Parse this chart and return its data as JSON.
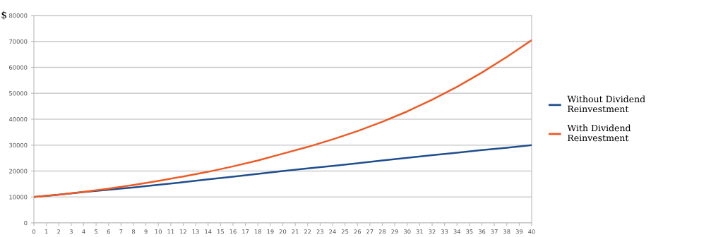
{
  "chart_data": {
    "type": "line",
    "ylabel": "$",
    "x": [
      0,
      2,
      4,
      6,
      8,
      10,
      12,
      14,
      16,
      18,
      20,
      22,
      24,
      26,
      28,
      30,
      32,
      34,
      36,
      38,
      40
    ],
    "series": [
      {
        "name": "Without Dividend\nReinvestment",
        "color": "#1f4e8c",
        "values": [
          10000,
          10900,
          11900,
          12800,
          13700,
          14700,
          15700,
          16800,
          17800,
          18900,
          20000,
          21000,
          22000,
          23000,
          24100,
          25100,
          26100,
          27100,
          28100,
          29000,
          30000
        ]
      },
      {
        "name": "With Dividend\nReinvestment",
        "color": "#ee5a24",
        "values": [
          10000,
          10900,
          12000,
          13200,
          14600,
          16200,
          17900,
          19700,
          21800,
          24100,
          26700,
          29300,
          32200,
          35400,
          39000,
          43000,
          47500,
          52500,
          58000,
          64000,
          70500
        ]
      }
    ],
    "xlim": [
      0,
      40
    ],
    "xticks": [
      0,
      1,
      2,
      3,
      4,
      5,
      6,
      7,
      8,
      9,
      10,
      11,
      12,
      13,
      14,
      15,
      16,
      17,
      18,
      19,
      20,
      21,
      22,
      23,
      24,
      25,
      26,
      27,
      28,
      29,
      30,
      31,
      32,
      33,
      34,
      35,
      36,
      37,
      38,
      39,
      40
    ],
    "ylim": [
      0,
      80000
    ],
    "yticks": [
      0,
      10000,
      20000,
      30000,
      40000,
      50000,
      60000,
      70000,
      80000
    ],
    "grid": "y",
    "legend": "right",
    "marker": "none",
    "line_style": "solid"
  }
}
